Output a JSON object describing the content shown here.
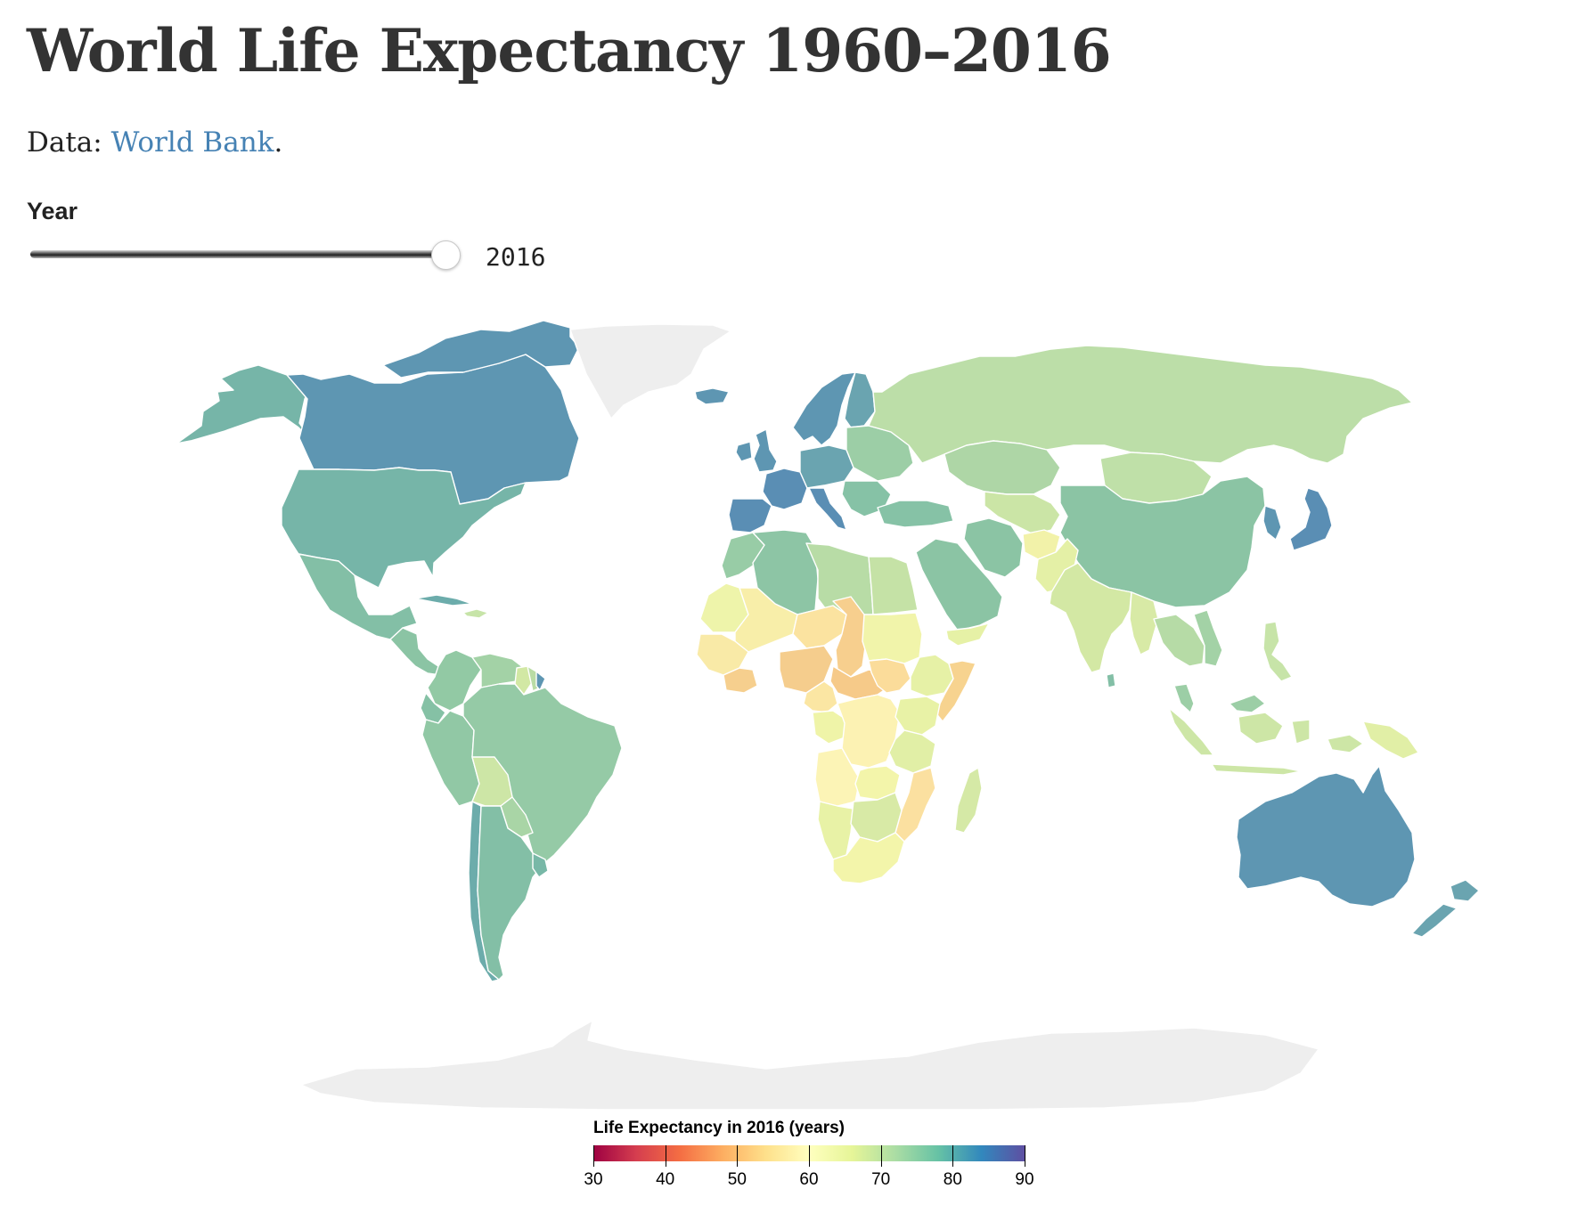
{
  "header": {
    "title": "World Life Expectancy 1960–2016",
    "source_prefix": "Data: ",
    "source_link": "World Bank",
    "source_suffix": "."
  },
  "control": {
    "label": "Year",
    "value": "2016",
    "min": 1960,
    "max": 2016,
    "current": 2016
  },
  "legend": {
    "title": "Life Expectancy in 2016 (years)",
    "domain": [
      30,
      90
    ],
    "ticks": [
      "30",
      "40",
      "50",
      "60",
      "70",
      "80",
      "90"
    ],
    "colors": [
      "#9e0142",
      "#d53e4f",
      "#f46d43",
      "#fdae61",
      "#fee08b",
      "#ffffbf",
      "#e6f598",
      "#abdda4",
      "#66c2a5",
      "#3288bd",
      "#5e4fa2"
    ]
  },
  "map": {
    "no_data_color": "#eeeeee",
    "regions": [
      {
        "name": "Alaska",
        "color": "#76b5a8"
      },
      {
        "name": "Canada",
        "color": "#5e96b2"
      },
      {
        "name": "Canadian Arctic Archipelago",
        "color": "#5e96b2"
      },
      {
        "name": "Greenland",
        "color": "#eeeeee"
      },
      {
        "name": "United States",
        "color": "#76b5a8"
      },
      {
        "name": "Mexico",
        "color": "#83bfa6"
      },
      {
        "name": "Central America",
        "color": "#8bc4a4"
      },
      {
        "name": "Cuba",
        "color": "#6cacab"
      },
      {
        "name": "Hispaniola",
        "color": "#c7e4a8"
      },
      {
        "name": "Colombia",
        "color": "#92c9a4"
      },
      {
        "name": "Venezuela",
        "color": "#a3d2a6"
      },
      {
        "name": "Guyana",
        "color": "#d2e8a4"
      },
      {
        "name": "Suriname",
        "color": "#b9dca5"
      },
      {
        "name": "French Guiana",
        "color": "#5e96b2"
      },
      {
        "name": "Ecuador",
        "color": "#85c1a5"
      },
      {
        "name": "Peru",
        "color": "#91c8a5"
      },
      {
        "name": "Brazil",
        "color": "#95caa6"
      },
      {
        "name": "Bolivia",
        "color": "#cde6a6"
      },
      {
        "name": "Paraguay",
        "color": "#a9d5a6"
      },
      {
        "name": "Chile",
        "color": "#6cacab"
      },
      {
        "name": "Argentina",
        "color": "#83bfa6"
      },
      {
        "name": "Uruguay",
        "color": "#78b8a7"
      },
      {
        "name": "Iceland",
        "color": "#5e96b2"
      },
      {
        "name": "Scandinavia",
        "color": "#5e96b2"
      },
      {
        "name": "Finland",
        "color": "#6aa4b0"
      },
      {
        "name": "United Kingdom",
        "color": "#5e96b2"
      },
      {
        "name": "Ireland",
        "color": "#5e96b2"
      },
      {
        "name": "France",
        "color": "#5a8eb4"
      },
      {
        "name": "Iberia",
        "color": "#5a8eb4"
      },
      {
        "name": "Central Europe",
        "color": "#6aa4b0"
      },
      {
        "name": "Italy",
        "color": "#5a8eb4"
      },
      {
        "name": "Eastern Europe",
        "color": "#9ccea6"
      },
      {
        "name": "Balkans",
        "color": "#86c2a6"
      },
      {
        "name": "Russia",
        "color": "#bcdea8"
      },
      {
        "name": "Kazakhstan",
        "color": "#aed6a6"
      },
      {
        "name": "Mongolia",
        "color": "#bfe0a8"
      },
      {
        "name": "China",
        "color": "#8bc4a4"
      },
      {
        "name": "Korea",
        "color": "#5e96b2"
      },
      {
        "name": "Japan",
        "color": "#5a8eb4"
      },
      {
        "name": "Turkey",
        "color": "#86c2a6"
      },
      {
        "name": "Iran",
        "color": "#8bc4a4"
      },
      {
        "name": "Arabian Peninsula",
        "color": "#8bc4a4"
      },
      {
        "name": "Yemen",
        "color": "#e6f1a6"
      },
      {
        "name": "Central Asia",
        "color": "#cbe5a6"
      },
      {
        "name": "Afghanistan",
        "color": "#f2f2a9"
      },
      {
        "name": "Pakistan",
        "color": "#e4f0a6"
      },
      {
        "name": "India",
        "color": "#d3e8a4"
      },
      {
        "name": "Sri Lanka",
        "color": "#83bfa6"
      },
      {
        "name": "Myanmar",
        "color": "#d8eaa6"
      },
      {
        "name": "Indochina",
        "color": "#b6dba6"
      },
      {
        "name": "Vietnam",
        "color": "#a3d2a6"
      },
      {
        "name": "Malaysia",
        "color": "#9ccea6"
      },
      {
        "name": "Indonesia",
        "color": "#cde6a6"
      },
      {
        "name": "Philippines",
        "color": "#c7e4a8"
      },
      {
        "name": "Papua New Guinea",
        "color": "#e1efa6"
      },
      {
        "name": "Australia",
        "color": "#5e96b2"
      },
      {
        "name": "New Zealand",
        "color": "#6aa4b0"
      },
      {
        "name": "Morocco",
        "color": "#98cca6"
      },
      {
        "name": "Algeria",
        "color": "#8dc5a5"
      },
      {
        "name": "Libya",
        "color": "#b8dca6"
      },
      {
        "name": "Egypt",
        "color": "#c5e2a6"
      },
      {
        "name": "Mauritania",
        "color": "#eef4aa"
      },
      {
        "name": "Mali",
        "color": "#f8eea9"
      },
      {
        "name": "Niger",
        "color": "#fbe3a0"
      },
      {
        "name": "Chad",
        "color": "#f7cf8e"
      },
      {
        "name": "Sudan",
        "color": "#f1f4aa"
      },
      {
        "name": "West Africa Coast",
        "color": "#f9eaa7"
      },
      {
        "name": "Ivory Coast",
        "color": "#f6cf8e"
      },
      {
        "name": "Nigeria",
        "color": "#f5cd8d"
      },
      {
        "name": "Central African Republic",
        "color": "#f6ca89"
      },
      {
        "name": "South Sudan",
        "color": "#fbdc9a"
      },
      {
        "name": "Ethiopia",
        "color": "#e6f1a6"
      },
      {
        "name": "Somalia",
        "color": "#f7d38f"
      },
      {
        "name": "Cameroon",
        "color": "#fbe6a3"
      },
      {
        "name": "Gabon Congo",
        "color": "#eff4a8"
      },
      {
        "name": "DR Congo",
        "color": "#fcf2b3"
      },
      {
        "name": "Kenya Uganda",
        "color": "#e8f2a6"
      },
      {
        "name": "Tanzania",
        "color": "#e1efa6"
      },
      {
        "name": "Angola",
        "color": "#fcf4b6"
      },
      {
        "name": "Zambia",
        "color": "#f3f5aa"
      },
      {
        "name": "Mozambique",
        "color": "#fbe0a0"
      },
      {
        "name": "Namibia",
        "color": "#e8f2a6"
      },
      {
        "name": "Botswana Zimbabwe",
        "color": "#d8eaa6"
      },
      {
        "name": "South Africa",
        "color": "#f3f5aa"
      },
      {
        "name": "Madagascar",
        "color": "#d5e9a6"
      },
      {
        "name": "Antarctica",
        "color": "#eeeeee"
      }
    ]
  }
}
